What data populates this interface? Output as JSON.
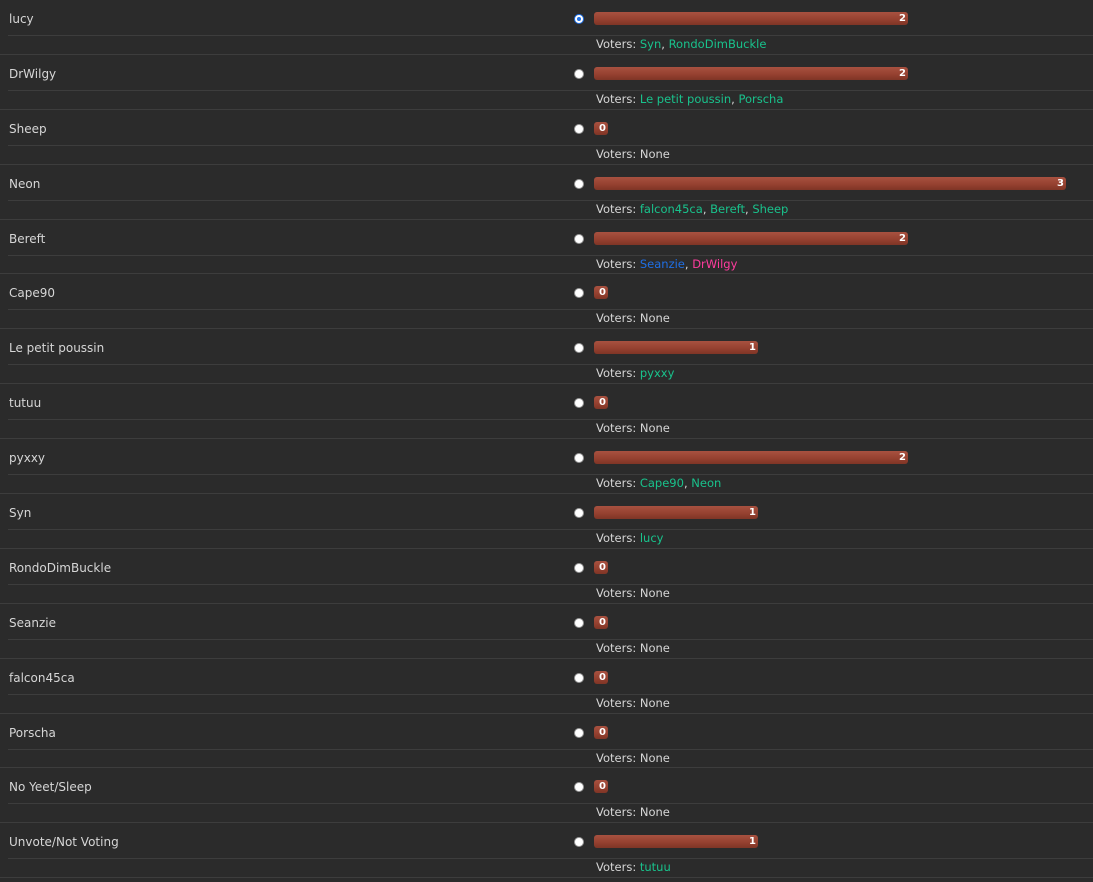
{
  "poll": {
    "voters_label": "Voters:",
    "none_text": "None",
    "max_votes": 3,
    "colors": {
      "bar": "#9a4535",
      "voter_default": "#19c28c",
      "voter_blue": "#1f6fe5",
      "voter_pink": "#ff3c9e",
      "background": "#2b2b2b"
    },
    "options": [
      {
        "name": "lucy",
        "selected": true,
        "votes": 2,
        "voters": [
          {
            "name": "Syn",
            "color": "default"
          },
          {
            "name": "RondoDimBuckle",
            "color": "default"
          }
        ]
      },
      {
        "name": "DrWilgy",
        "selected": false,
        "votes": 2,
        "voters": [
          {
            "name": "Le petit poussin",
            "color": "default"
          },
          {
            "name": "Porscha",
            "color": "default"
          }
        ]
      },
      {
        "name": "Sheep",
        "selected": false,
        "votes": 0,
        "voters": []
      },
      {
        "name": "Neon",
        "selected": false,
        "votes": 3,
        "voters": [
          {
            "name": "falcon45ca",
            "color": "default"
          },
          {
            "name": "Bereft",
            "color": "default"
          },
          {
            "name": "Sheep",
            "color": "default"
          }
        ]
      },
      {
        "name": "Bereft",
        "selected": false,
        "votes": 2,
        "voters": [
          {
            "name": "Seanzie",
            "color": "blue"
          },
          {
            "name": "DrWilgy",
            "color": "pink"
          }
        ]
      },
      {
        "name": "Cape90",
        "selected": false,
        "votes": 0,
        "voters": []
      },
      {
        "name": "Le petit poussin",
        "selected": false,
        "votes": 1,
        "voters": [
          {
            "name": "pyxxy",
            "color": "default"
          }
        ]
      },
      {
        "name": "tutuu",
        "selected": false,
        "votes": 0,
        "voters": []
      },
      {
        "name": "pyxxy",
        "selected": false,
        "votes": 2,
        "voters": [
          {
            "name": "Cape90",
            "color": "default"
          },
          {
            "name": "Neon",
            "color": "default"
          }
        ]
      },
      {
        "name": "Syn",
        "selected": false,
        "votes": 1,
        "voters": [
          {
            "name": "lucy",
            "color": "default"
          }
        ]
      },
      {
        "name": "RondoDimBuckle",
        "selected": false,
        "votes": 0,
        "voters": []
      },
      {
        "name": "Seanzie",
        "selected": false,
        "votes": 0,
        "voters": []
      },
      {
        "name": "falcon45ca",
        "selected": false,
        "votes": 0,
        "voters": []
      },
      {
        "name": "Porscha",
        "selected": false,
        "votes": 0,
        "voters": []
      },
      {
        "name": "No Yeet/Sleep",
        "selected": false,
        "votes": 0,
        "voters": []
      },
      {
        "name": "Unvote/Not Voting",
        "selected": false,
        "votes": 1,
        "voters": [
          {
            "name": "tutuu",
            "color": "default"
          }
        ]
      }
    ]
  }
}
